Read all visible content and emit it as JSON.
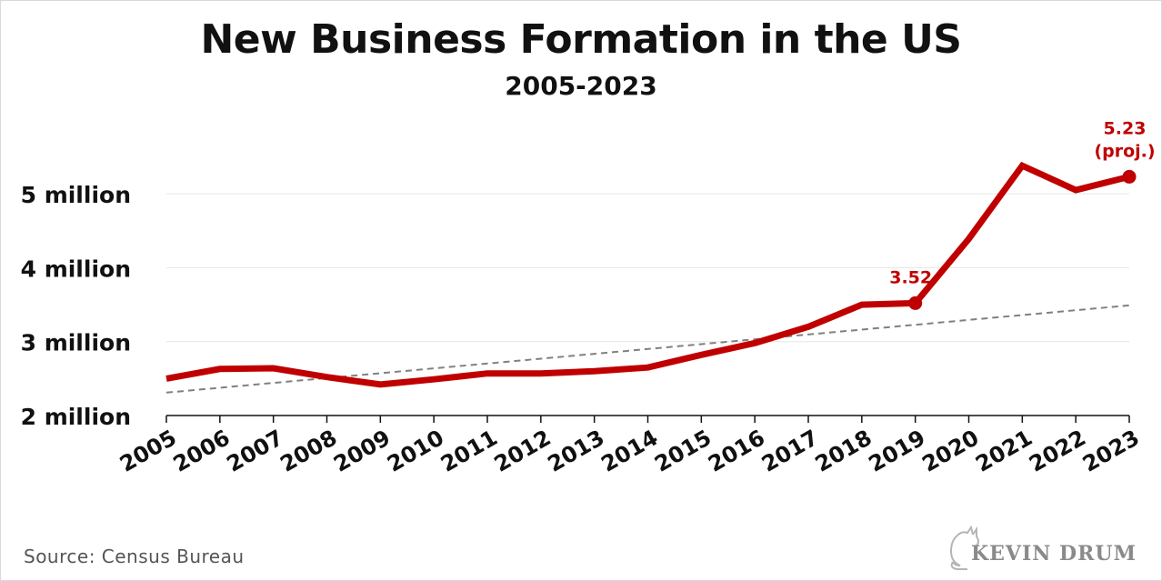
{
  "title": "New Business Formation in the US",
  "subtitle": "2005-2023",
  "source": "Source:  Census Bureau",
  "brand": "KEVIN DRUM",
  "colors": {
    "series": "#c00000",
    "trend": "#808080",
    "grid": "#e6e6e6",
    "axis": "#111111",
    "annotation": "#c00000"
  },
  "chart_data": {
    "type": "line",
    "title": "New Business Formation in the US",
    "subtitle": "2005-2023",
    "xlabel": "",
    "ylabel": "",
    "x": [
      2005,
      2006,
      2007,
      2008,
      2009,
      2010,
      2011,
      2012,
      2013,
      2014,
      2015,
      2016,
      2017,
      2018,
      2019,
      2020,
      2021,
      2022,
      2023
    ],
    "ylim": [
      2,
      5.6
    ],
    "y_ticks": [
      2,
      3,
      4,
      5
    ],
    "y_tick_labels": [
      "2 million",
      "3 million",
      "4 million",
      "5 million"
    ],
    "grid": true,
    "series": [
      {
        "values": [
          2.5,
          2.63,
          2.64,
          2.52,
          2.42,
          2.49,
          2.57,
          2.57,
          2.6,
          2.65,
          2.82,
          2.98,
          3.2,
          3.5,
          3.52,
          4.39,
          5.38,
          5.05,
          5.23
        ]
      }
    ],
    "trendline": {
      "style": "dashed",
      "start": 2.31,
      "end": 3.49
    },
    "annotations": [
      {
        "x": 2019,
        "value": 3.52,
        "lines": [
          "3.52"
        ]
      },
      {
        "x": 2023,
        "value": 5.23,
        "lines": [
          "5.23",
          "(proj.)"
        ]
      }
    ]
  }
}
